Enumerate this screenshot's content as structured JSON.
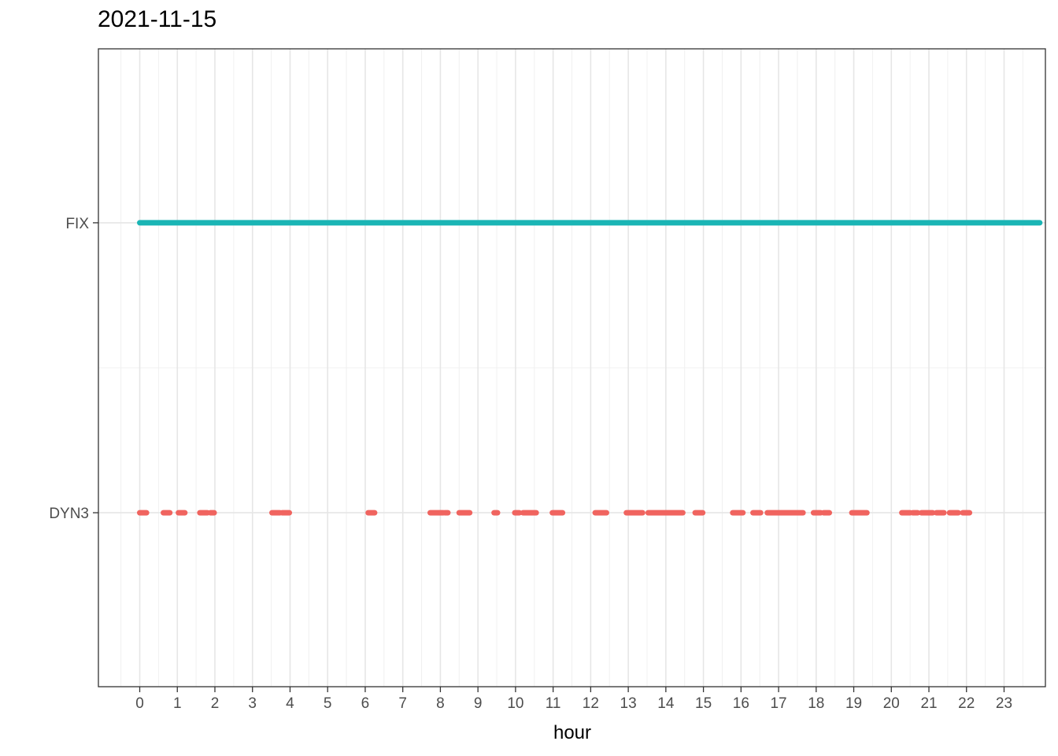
{
  "chart_data": {
    "type": "scatter",
    "title": "2021-11-15",
    "xlabel": "hour",
    "ylabel": "",
    "x_ticks": [
      "0",
      "1",
      "2",
      "3",
      "4",
      "5",
      "6",
      "7",
      "8",
      "9",
      "10",
      "11",
      "12",
      "13",
      "14",
      "15",
      "16",
      "17",
      "18",
      "19",
      "20",
      "21",
      "22",
      "23"
    ],
    "xlim": [
      -1.1,
      24.1
    ],
    "y_categories": [
      "DYN3",
      "FIX"
    ],
    "grid": true,
    "legend": "none",
    "series": [
      {
        "category": "FIX",
        "color": "#1ab5b5",
        "segments": [
          [
            0.0,
            23.95
          ]
        ]
      },
      {
        "category": "DYN3",
        "color": "#f0645f",
        "segments": [
          [
            0.0,
            0.18
          ],
          [
            0.63,
            0.8
          ],
          [
            1.03,
            1.2
          ],
          [
            1.6,
            1.8
          ],
          [
            1.88,
            1.98
          ],
          [
            3.52,
            3.73
          ],
          [
            3.79,
            3.98
          ],
          [
            6.08,
            6.25
          ],
          [
            7.73,
            8.08
          ],
          [
            8.12,
            8.2
          ],
          [
            8.5,
            8.78
          ],
          [
            9.43,
            9.52
          ],
          [
            9.98,
            10.1
          ],
          [
            10.2,
            10.55
          ],
          [
            10.98,
            11.25
          ],
          [
            12.12,
            12.42
          ],
          [
            12.95,
            13.38
          ],
          [
            13.53,
            14.45
          ],
          [
            14.78,
            14.98
          ],
          [
            15.78,
            16.05
          ],
          [
            16.32,
            16.52
          ],
          [
            16.7,
            17.65
          ],
          [
            17.93,
            18.12
          ],
          [
            18.2,
            18.35
          ],
          [
            18.95,
            19.35
          ],
          [
            20.28,
            20.5
          ],
          [
            20.57,
            20.7
          ],
          [
            20.8,
            21.1
          ],
          [
            21.2,
            21.4
          ],
          [
            21.55,
            21.78
          ],
          [
            21.9,
            22.08
          ]
        ]
      }
    ]
  }
}
